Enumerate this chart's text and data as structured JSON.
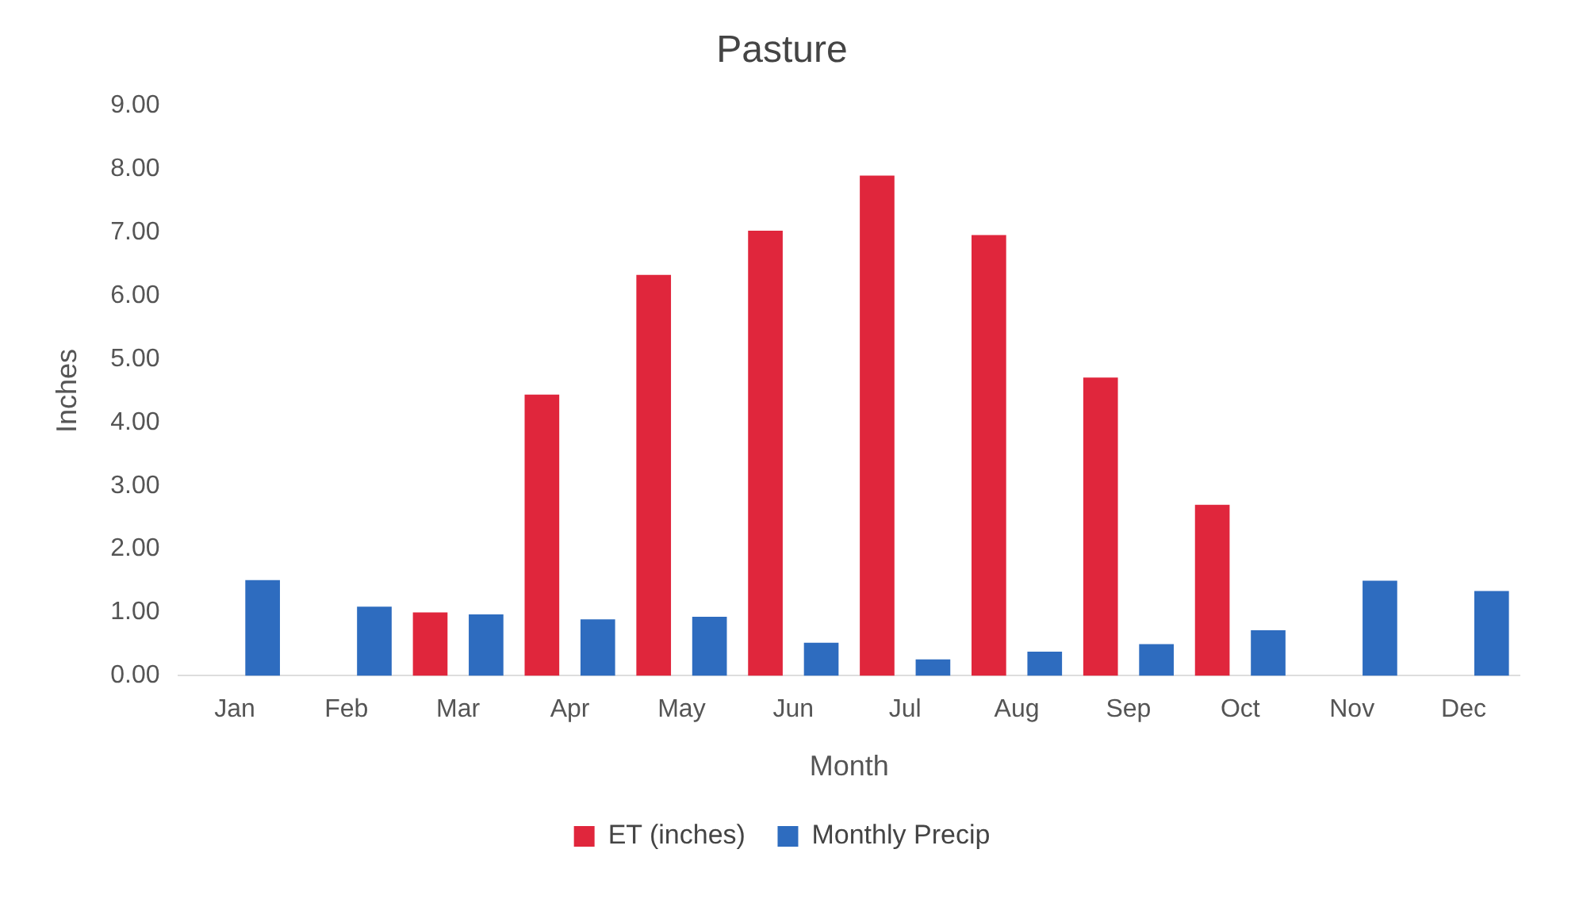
{
  "chart_data": {
    "type": "bar",
    "title": "Pasture",
    "xlabel": "Month",
    "ylabel": "Inches",
    "categories": [
      "Jan",
      "Feb",
      "Mar",
      "Apr",
      "May",
      "Jun",
      "Jul",
      "Aug",
      "Sep",
      "Oct",
      "Nov",
      "Dec"
    ],
    "series": [
      {
        "name": "ET (inches)",
        "color": "#e0263c",
        "values": [
          null,
          null,
          1.0,
          4.44,
          6.33,
          7.03,
          7.9,
          6.96,
          4.71,
          2.7,
          null,
          null
        ]
      },
      {
        "name": "Monthly Precip",
        "color": "#2e6cbf",
        "values": [
          1.51,
          1.09,
          0.97,
          0.89,
          0.93,
          0.52,
          0.26,
          0.38,
          0.5,
          0.72,
          1.5,
          1.34
        ]
      }
    ],
    "ylim": [
      0,
      9
    ],
    "yticks": [
      {
        "value": 0,
        "label": "0.00"
      },
      {
        "value": 1,
        "label": "1.00"
      },
      {
        "value": 2,
        "label": "2.00"
      },
      {
        "value": 3,
        "label": "3.00"
      },
      {
        "value": 4,
        "label": "4.00"
      },
      {
        "value": 5,
        "label": "5.00"
      },
      {
        "value": 6,
        "label": "6.00"
      },
      {
        "value": 7,
        "label": "7.00"
      },
      {
        "value": 8,
        "label": "8.00"
      },
      {
        "value": 9,
        "label": "9.00"
      }
    ],
    "grid": false,
    "legend": "bottom"
  }
}
